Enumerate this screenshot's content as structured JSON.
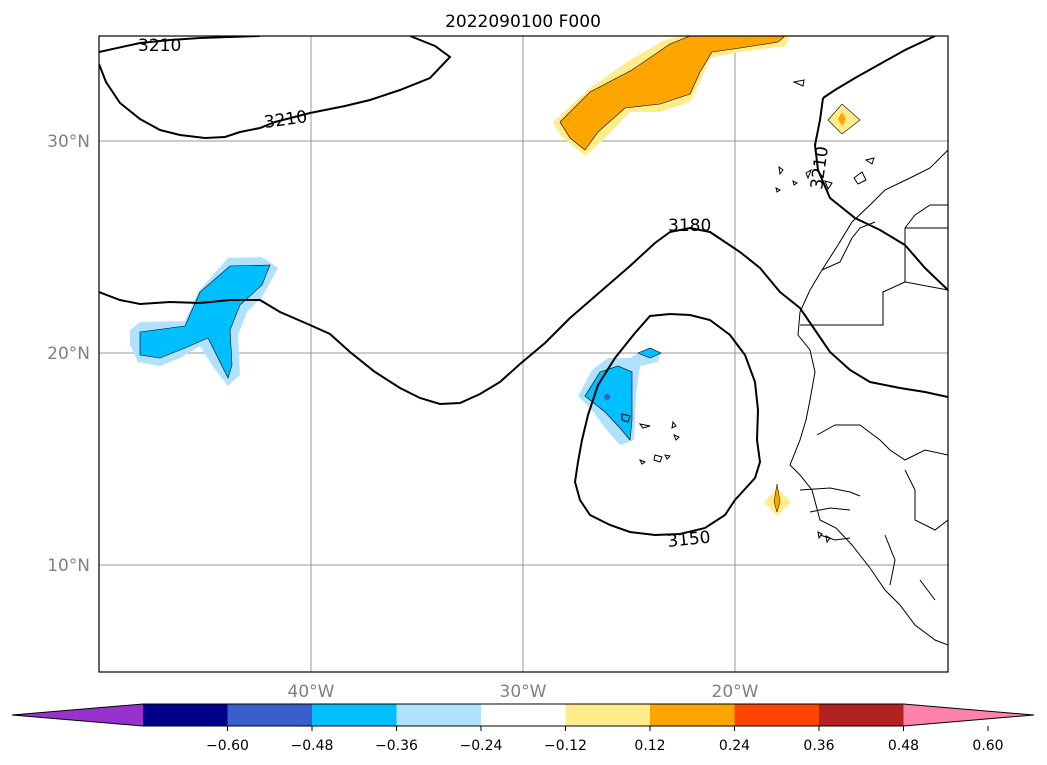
{
  "title": "2022090100 F000",
  "map": {
    "lat_labels": [
      "30°N",
      "20°N",
      "10°N"
    ],
    "lon_labels": [
      "40°W",
      "30°W",
      "20°W"
    ],
    "contour_labels": [
      "3210",
      "3210",
      "3210",
      "3180",
      "3150"
    ]
  },
  "colorbar": {
    "ticks": [
      "−0.60",
      "−0.48",
      "−0.36",
      "−0.24",
      "−0.12",
      "0.12",
      "0.24",
      "0.36",
      "0.48",
      "0.60"
    ],
    "colors": [
      "#9932cc",
      "#00008b",
      "#3a5fcd",
      "#00bfff",
      "#b0e2ff",
      "#ffffff",
      "#ffec8b",
      "#ffa500",
      "#ff4500",
      "#b22222",
      "#ff82ab"
    ]
  }
}
